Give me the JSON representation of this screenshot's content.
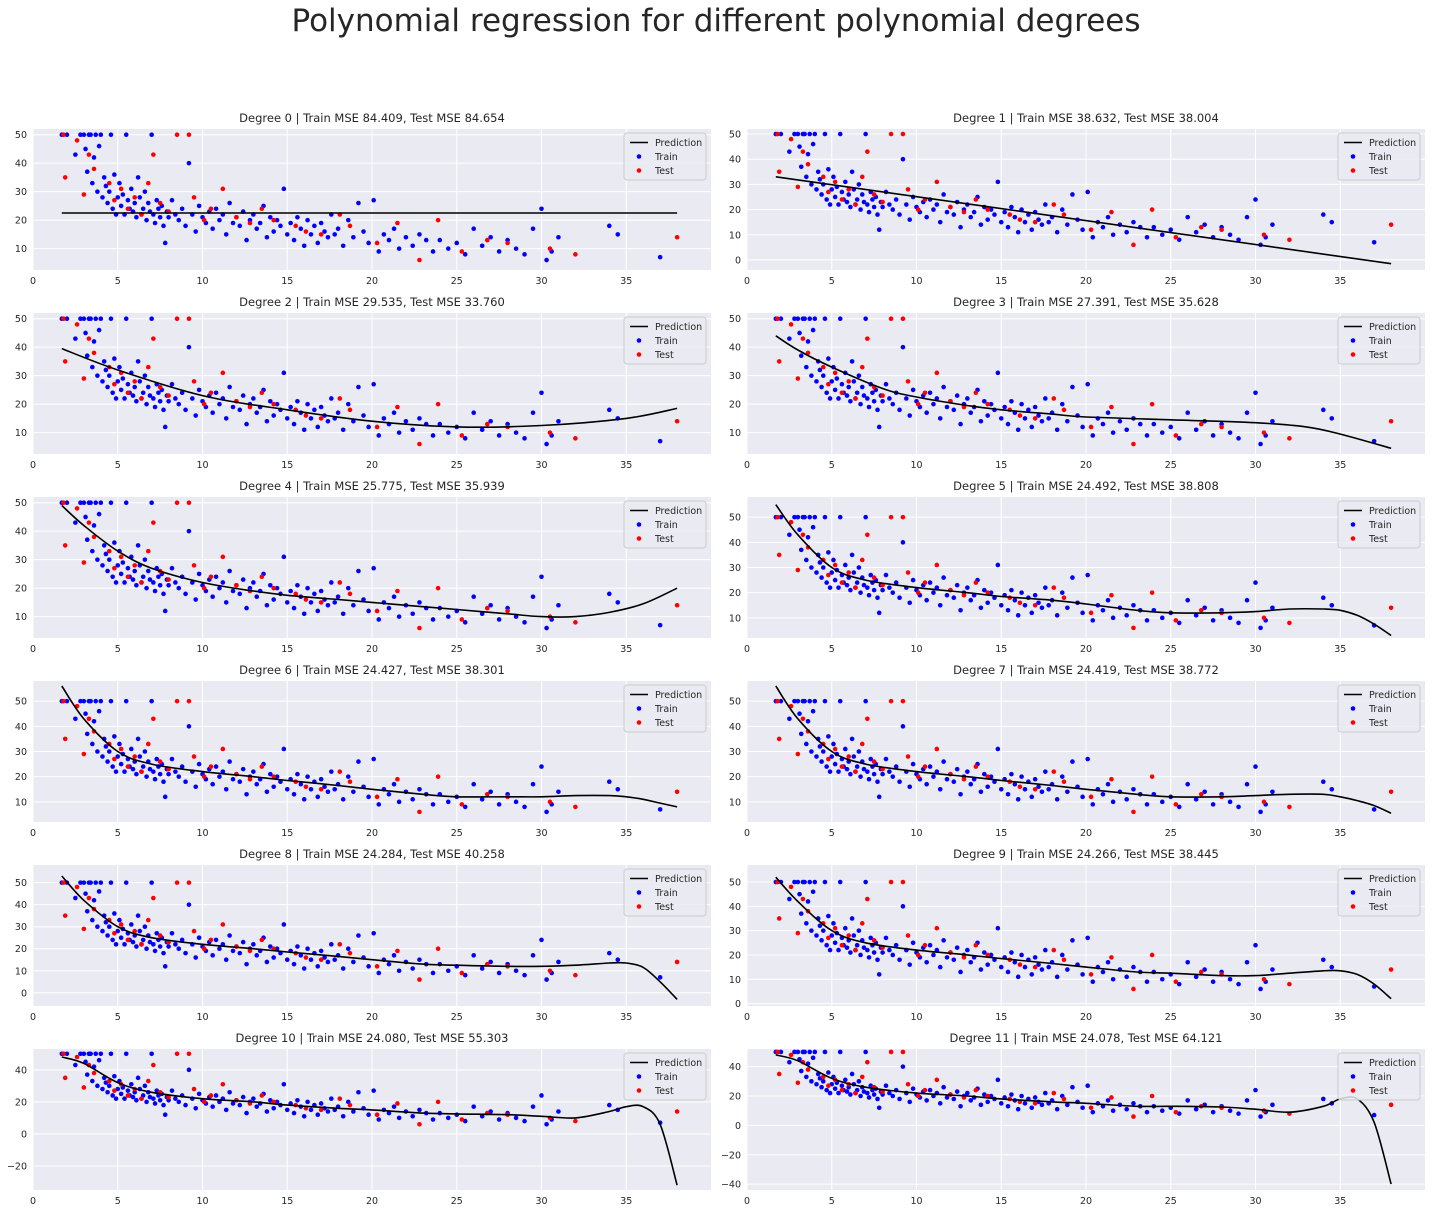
{
  "figure": {
    "title": "Polynomial regression for different polynomial degrees"
  },
  "legend": {
    "labels": [
      "Prediction",
      "Train",
      "Test"
    ],
    "placement": "upper-right"
  },
  "colors": {
    "train": "#0000ff",
    "test": "#ff0000",
    "prediction": "#000000",
    "axes_background": "#eaeaf2",
    "grid": "#ffffff"
  },
  "chart_data": [
    {
      "type": "scatter",
      "degree": 0,
      "title": "Degree 0 | Train MSE 84.409, Test MSE 84.654",
      "xlim": [
        0,
        40
      ],
      "ylim": [
        2.5,
        52
      ],
      "xticks": [
        0,
        5,
        10,
        15,
        20,
        25,
        30,
        35
      ],
      "yticks": [
        10,
        20,
        30,
        40,
        50
      ],
      "prediction": {
        "x": [
          1.7,
          38
        ],
        "y": [
          22.5,
          22.5
        ]
      }
    },
    {
      "type": "scatter",
      "degree": 1,
      "title": "Degree 1 | Train MSE 38.632, Test MSE 38.004",
      "xlim": [
        0,
        40
      ],
      "ylim": [
        -4,
        52
      ],
      "xticks": [
        0,
        5,
        10,
        15,
        20,
        25,
        30,
        35
      ],
      "yticks": [
        0,
        10,
        20,
        30,
        40,
        50
      ],
      "prediction": {
        "x": [
          1.7,
          38
        ],
        "y": [
          33,
          -1.5
        ]
      }
    },
    {
      "type": "scatter",
      "degree": 2,
      "title": "Degree 2 | Train MSE 29.535, Test MSE 33.760",
      "xlim": [
        0,
        40
      ],
      "ylim": [
        2.5,
        52
      ],
      "xticks": [
        0,
        5,
        10,
        15,
        20,
        25,
        30,
        35
      ],
      "yticks": [
        10,
        20,
        30,
        40,
        50
      ],
      "prediction": {
        "x": [
          1.7,
          5,
          10,
          15,
          20,
          25,
          30,
          35,
          38
        ],
        "y": [
          39.5,
          32,
          23,
          18,
          14,
          12,
          12.5,
          15,
          18.5
        ]
      }
    },
    {
      "type": "scatter",
      "degree": 3,
      "title": "Degree 3 | Train MSE 27.391, Test MSE 35.628",
      "xlim": [
        0,
        40
      ],
      "ylim": [
        2.5,
        52
      ],
      "xticks": [
        0,
        5,
        10,
        15,
        20,
        25,
        30,
        35
      ],
      "yticks": [
        10,
        20,
        30,
        40,
        50
      ],
      "prediction": {
        "x": [
          1.7,
          3,
          5,
          8,
          10,
          13,
          15,
          18,
          20,
          25,
          30,
          33,
          35,
          38
        ],
        "y": [
          44,
          39,
          33,
          25.5,
          22.5,
          19.5,
          18,
          16.5,
          15.5,
          14.5,
          13.5,
          12,
          9.5,
          4.5
        ]
      }
    },
    {
      "type": "scatter",
      "degree": 4,
      "title": "Degree 4 | Train MSE 25.775, Test MSE 35.939",
      "xlim": [
        0,
        40
      ],
      "ylim": [
        2.5,
        52
      ],
      "xticks": [
        0,
        5,
        10,
        15,
        20,
        25,
        30,
        35
      ],
      "yticks": [
        10,
        20,
        30,
        40,
        50
      ],
      "prediction": {
        "x": [
          1.7,
          3,
          5,
          7,
          10,
          13,
          15,
          18,
          20,
          23,
          25,
          28,
          30,
          32,
          34,
          36,
          38
        ],
        "y": [
          49,
          42,
          33,
          27,
          22,
          19,
          17.5,
          16,
          15,
          13.5,
          12.5,
          11,
          10,
          10,
          11.5,
          14.5,
          20
        ]
      }
    },
    {
      "type": "scatter",
      "degree": 5,
      "title": "Degree 5 | Train MSE 24.492, Test MSE 38.808",
      "xlim": [
        0,
        40
      ],
      "ylim": [
        2,
        58
      ],
      "xticks": [
        0,
        5,
        10,
        15,
        20,
        25,
        30,
        35
      ],
      "yticks": [
        10,
        20,
        30,
        40,
        50
      ],
      "prediction": {
        "x": [
          1.7,
          3,
          5,
          7,
          10,
          13,
          15,
          18,
          20,
          23,
          25,
          28,
          30,
          32,
          34,
          35,
          36,
          37,
          38
        ],
        "y": [
          55,
          43,
          30,
          25,
          22,
          20,
          18.5,
          17,
          15.5,
          13,
          12,
          12,
          12.5,
          13.5,
          13.5,
          13,
          11,
          7.5,
          3
        ]
      }
    },
    {
      "type": "scatter",
      "degree": 6,
      "title": "Degree 6 | Train MSE 24.427, Test MSE 38.301",
      "xlim": [
        0,
        40
      ],
      "ylim": [
        2,
        58
      ],
      "xticks": [
        0,
        5,
        10,
        15,
        20,
        25,
        30,
        35
      ],
      "yticks": [
        10,
        20,
        30,
        40,
        50
      ],
      "prediction": {
        "x": [
          1.7,
          3,
          5,
          7,
          10,
          13,
          15,
          18,
          20,
          23,
          25,
          28,
          30,
          32,
          34,
          35,
          36,
          37,
          38
        ],
        "y": [
          56,
          43,
          30,
          25,
          22,
          20,
          18.5,
          16.5,
          15,
          13,
          12,
          12,
          12,
          12.5,
          12.5,
          12,
          11,
          9.5,
          8
        ]
      }
    },
    {
      "type": "scatter",
      "degree": 7,
      "title": "Degree 7 | Train MSE 24.419, Test MSE 38.772",
      "xlim": [
        0,
        40
      ],
      "ylim": [
        2,
        58
      ],
      "xticks": [
        0,
        5,
        10,
        15,
        20,
        25,
        30,
        35
      ],
      "yticks": [
        10,
        20,
        30,
        40,
        50
      ],
      "prediction": {
        "x": [
          1.7,
          3,
          5,
          7,
          10,
          13,
          15,
          18,
          20,
          23,
          25,
          28,
          30,
          32,
          34,
          35,
          36,
          37,
          38
        ],
        "y": [
          56,
          43,
          30,
          25,
          22,
          20,
          18.5,
          16.5,
          15,
          13,
          12,
          12,
          12.5,
          13,
          13,
          12,
          10.5,
          8.5,
          5.5
        ]
      }
    },
    {
      "type": "scatter",
      "degree": 8,
      "title": "Degree 8 | Train MSE 24.284, Test MSE 40.258",
      "xlim": [
        0,
        40
      ],
      "ylim": [
        -6,
        58
      ],
      "xticks": [
        0,
        5,
        10,
        15,
        20,
        25,
        30,
        35
      ],
      "yticks": [
        0,
        10,
        20,
        30,
        40,
        50
      ],
      "prediction": {
        "x": [
          1.7,
          3,
          5,
          7,
          10,
          13,
          15,
          18,
          20,
          23,
          25,
          28,
          30,
          32,
          34,
          35,
          36,
          37,
          38
        ],
        "y": [
          53,
          42,
          30,
          25,
          22,
          20,
          18.5,
          16.5,
          15,
          13,
          12.5,
          12,
          12,
          12.5,
          13.5,
          13.5,
          11.5,
          5,
          -3
        ]
      }
    },
    {
      "type": "scatter",
      "degree": 9,
      "title": "Degree 9 | Train MSE 24.266, Test MSE 38.445",
      "xlim": [
        0,
        40
      ],
      "ylim": [
        -1,
        57
      ],
      "xticks": [
        0,
        5,
        10,
        15,
        20,
        25,
        30,
        35
      ],
      "yticks": [
        0,
        10,
        20,
        30,
        40,
        50
      ],
      "prediction": {
        "x": [
          1.7,
          3,
          5,
          7,
          10,
          13,
          15,
          18,
          20,
          23,
          25,
          28,
          30,
          32,
          34,
          35,
          36,
          37,
          38
        ],
        "y": [
          52,
          42,
          30,
          25,
          22,
          20,
          18.5,
          16.5,
          15,
          13,
          12.5,
          11.5,
          11.5,
          12.5,
          13.5,
          13.5,
          12,
          8,
          2
        ]
      }
    },
    {
      "type": "scatter",
      "degree": 10,
      "title": "Degree 10 | Train MSE 24.080, Test MSE 55.303",
      "xlim": [
        0,
        40
      ],
      "ylim": [
        -35,
        53
      ],
      "xticks": [
        0,
        5,
        10,
        15,
        20,
        25,
        30,
        35
      ],
      "yticks": [
        -20,
        0,
        20,
        40
      ],
      "prediction": {
        "x": [
          1.7,
          3,
          5,
          7,
          10,
          13,
          15,
          18,
          20,
          23,
          25,
          28,
          30,
          32,
          34,
          35,
          36,
          37,
          38
        ],
        "y": [
          48,
          44,
          32,
          26,
          22,
          20,
          18,
          16,
          15,
          13,
          12.5,
          12,
          11,
          10,
          14,
          17,
          17,
          6,
          -32
        ]
      }
    },
    {
      "type": "scatter",
      "degree": 11,
      "title": "Degree 11 | Train MSE 24.078, Test MSE 64.121",
      "xlim": [
        0,
        40
      ],
      "ylim": [
        -44,
        52
      ],
      "xticks": [
        0,
        5,
        10,
        15,
        20,
        25,
        30,
        35
      ],
      "yticks": [
        -40,
        -20,
        0,
        20,
        40
      ],
      "prediction": {
        "x": [
          1.7,
          3,
          5,
          7,
          10,
          13,
          15,
          18,
          20,
          23,
          25,
          28,
          30,
          32,
          34,
          35,
          36,
          37,
          38
        ],
        "y": [
          48,
          44,
          32,
          26,
          22,
          20,
          18,
          16,
          15,
          13,
          13,
          12.5,
          11,
          9,
          13,
          18,
          18,
          2,
          -40
        ]
      }
    }
  ],
  "train_points": [
    [
      1.7,
      50
    ],
    [
      2.0,
      50
    ],
    [
      2.5,
      43
    ],
    [
      2.8,
      50
    ],
    [
      3.0,
      50
    ],
    [
      3.1,
      45
    ],
    [
      3.2,
      37
    ],
    [
      3.3,
      50
    ],
    [
      3.4,
      50
    ],
    [
      3.5,
      33
    ],
    [
      3.6,
      42
    ],
    [
      3.7,
      50
    ],
    [
      3.8,
      30
    ],
    [
      3.9,
      46
    ],
    [
      4.0,
      50
    ],
    [
      4.1,
      28
    ],
    [
      4.2,
      35
    ],
    [
      4.3,
      32
    ],
    [
      4.4,
      26
    ],
    [
      4.5,
      30
    ],
    [
      4.6,
      50
    ],
    [
      4.7,
      24
    ],
    [
      4.8,
      36
    ],
    [
      4.9,
      22
    ],
    [
      5.0,
      28
    ],
    [
      5.1,
      33
    ],
    [
      5.2,
      25
    ],
    [
      5.3,
      29
    ],
    [
      5.4,
      22
    ],
    [
      5.5,
      50
    ],
    [
      5.6,
      27
    ],
    [
      5.7,
      24
    ],
    [
      5.8,
      31
    ],
    [
      5.9,
      23
    ],
    [
      6.0,
      26
    ],
    [
      6.1,
      21
    ],
    [
      6.2,
      35
    ],
    [
      6.3,
      28
    ],
    [
      6.4,
      22
    ],
    [
      6.5,
      24
    ],
    [
      6.6,
      30
    ],
    [
      6.7,
      20
    ],
    [
      6.8,
      26
    ],
    [
      6.9,
      23
    ],
    [
      7.0,
      50
    ],
    [
      7.1,
      22
    ],
    [
      7.2,
      19
    ],
    [
      7.3,
      27
    ],
    [
      7.4,
      24
    ],
    [
      7.5,
      21
    ],
    [
      7.6,
      25
    ],
    [
      7.7,
      18
    ],
    [
      7.8,
      12
    ],
    [
      7.9,
      23
    ],
    [
      8.0,
      21
    ],
    [
      8.2,
      27
    ],
    [
      8.4,
      22
    ],
    [
      8.6,
      20
    ],
    [
      8.8,
      24
    ],
    [
      9.0,
      18
    ],
    [
      9.2,
      40
    ],
    [
      9.4,
      22
    ],
    [
      9.6,
      16
    ],
    [
      9.8,
      25
    ],
    [
      10.0,
      21
    ],
    [
      10.2,
      19
    ],
    [
      10.4,
      23
    ],
    [
      10.6,
      17
    ],
    [
      10.8,
      24
    ],
    [
      11.0,
      20
    ],
    [
      11.2,
      22
    ],
    [
      11.4,
      15
    ],
    [
      11.6,
      26
    ],
    [
      11.8,
      19
    ],
    [
      12.0,
      21
    ],
    [
      12.2,
      18
    ],
    [
      12.4,
      23
    ],
    [
      12.6,
      13
    ],
    [
      12.8,
      20
    ],
    [
      13.0,
      22
    ],
    [
      13.2,
      17
    ],
    [
      13.4,
      19
    ],
    [
      13.6,
      25
    ],
    [
      13.8,
      14
    ],
    [
      14.0,
      21
    ],
    [
      14.2,
      16
    ],
    [
      14.4,
      20
    ],
    [
      14.6,
      18
    ],
    [
      14.8,
      31
    ],
    [
      15.0,
      15
    ],
    [
      15.2,
      19
    ],
    [
      15.4,
      13
    ],
    [
      15.6,
      21
    ],
    [
      15.8,
      17
    ],
    [
      16.0,
      11
    ],
    [
      16.2,
      20
    ],
    [
      16.4,
      15
    ],
    [
      16.6,
      18
    ],
    [
      16.8,
      12
    ],
    [
      17.0,
      19
    ],
    [
      17.2,
      16
    ],
    [
      17.4,
      14
    ],
    [
      17.6,
      22
    ],
    [
      17.8,
      15
    ],
    [
      18.0,
      17
    ],
    [
      18.3,
      11
    ],
    [
      18.6,
      20
    ],
    [
      18.9,
      14
    ],
    [
      19.2,
      26
    ],
    [
      19.5,
      16
    ],
    [
      19.8,
      12
    ],
    [
      20.1,
      27
    ],
    [
      20.4,
      9
    ],
    [
      20.7,
      15
    ],
    [
      21.0,
      13
    ],
    [
      21.3,
      17
    ],
    [
      21.6,
      10
    ],
    [
      22.0,
      14
    ],
    [
      22.4,
      11
    ],
    [
      22.8,
      15
    ],
    [
      23.2,
      13
    ],
    [
      23.6,
      9
    ],
    [
      24.0,
      13
    ],
    [
      24.5,
      10
    ],
    [
      25.0,
      12
    ],
    [
      25.5,
      8
    ],
    [
      26.0,
      17
    ],
    [
      26.5,
      11
    ],
    [
      27.0,
      14
    ],
    [
      27.5,
      9
    ],
    [
      28.0,
      13
    ],
    [
      28.5,
      10
    ],
    [
      29.0,
      8
    ],
    [
      29.5,
      17
    ],
    [
      30.0,
      24
    ],
    [
      30.3,
      6
    ],
    [
      30.6,
      9
    ],
    [
      31.0,
      14
    ],
    [
      34.0,
      18
    ],
    [
      34.5,
      15
    ],
    [
      37.0,
      7
    ]
  ],
  "test_points": [
    [
      1.8,
      50
    ],
    [
      1.9,
      35
    ],
    [
      2.6,
      48
    ],
    [
      3.0,
      29
    ],
    [
      3.3,
      43
    ],
    [
      3.6,
      38
    ],
    [
      4.5,
      33
    ],
    [
      4.8,
      27
    ],
    [
      5.2,
      31
    ],
    [
      5.6,
      24
    ],
    [
      6.0,
      28
    ],
    [
      6.4,
      22
    ],
    [
      6.8,
      33
    ],
    [
      7.1,
      43
    ],
    [
      7.5,
      26
    ],
    [
      8.0,
      23
    ],
    [
      8.5,
      50
    ],
    [
      9.2,
      50
    ],
    [
      9.5,
      28
    ],
    [
      10.1,
      20
    ],
    [
      10.5,
      24
    ],
    [
      11.2,
      31
    ],
    [
      12.0,
      21
    ],
    [
      12.8,
      19
    ],
    [
      13.5,
      24
    ],
    [
      14.2,
      20
    ],
    [
      15.5,
      18
    ],
    [
      16.1,
      16
    ],
    [
      17.0,
      15
    ],
    [
      18.1,
      22
    ],
    [
      18.7,
      18
    ],
    [
      20.3,
      12
    ],
    [
      21.5,
      19
    ],
    [
      22.8,
      6
    ],
    [
      23.9,
      20
    ],
    [
      25.3,
      9
    ],
    [
      26.8,
      13
    ],
    [
      28.0,
      12
    ],
    [
      30.5,
      10
    ],
    [
      32.0,
      8
    ],
    [
      38.0,
      14
    ]
  ]
}
